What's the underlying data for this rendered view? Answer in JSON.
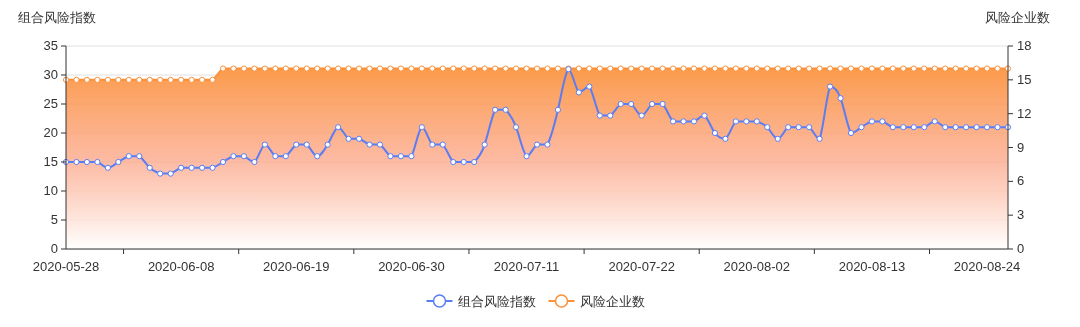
{
  "chart_data": {
    "type": "line",
    "ylabel": "组合风险指数",
    "y2label": "风险企业数",
    "categories": [
      "2020-05-28",
      null,
      null,
      null,
      null,
      null,
      null,
      null,
      null,
      null,
      null,
      "2020-06-08",
      null,
      null,
      null,
      null,
      null,
      null,
      null,
      null,
      null,
      null,
      "2020-06-19",
      null,
      null,
      null,
      null,
      null,
      null,
      null,
      null,
      null,
      null,
      "2020-06-30",
      null,
      null,
      null,
      null,
      null,
      null,
      null,
      null,
      null,
      null,
      "2020-07-11",
      null,
      null,
      null,
      null,
      null,
      null,
      null,
      null,
      null,
      null,
      "2020-07-22",
      null,
      null,
      null,
      null,
      null,
      null,
      null,
      null,
      null,
      null,
      "2020-08-02",
      null,
      null,
      null,
      null,
      null,
      null,
      null,
      null,
      null,
      null,
      "2020-08-13",
      null,
      null,
      null,
      null,
      null,
      null,
      null,
      null,
      null,
      null,
      "2020-08-24",
      null,
      null
    ],
    "ylim": [
      0,
      35
    ],
    "yticks": [
      0,
      5,
      10,
      15,
      20,
      25,
      30,
      35
    ],
    "y2lim": [
      0,
      18
    ],
    "y2ticks": [
      0,
      3,
      6,
      9,
      12,
      15,
      18
    ],
    "grid": "y",
    "legend": "bottom",
    "marker": "circle",
    "line_style": "solid",
    "series": [
      {
        "name": "组合风险指数",
        "color": "#5b7cf2",
        "values": [
          15,
          15,
          15,
          15,
          14,
          15,
          16,
          16,
          14,
          13,
          13,
          14,
          14,
          14,
          14,
          15,
          16,
          16,
          15,
          18,
          16,
          16,
          18,
          18,
          16,
          18,
          21,
          19,
          19,
          18,
          18,
          16,
          16,
          16,
          21,
          18,
          18,
          15,
          15,
          15,
          18,
          24,
          24,
          21,
          16,
          18,
          18,
          24,
          31,
          27,
          28,
          23,
          23,
          25,
          25,
          23,
          25,
          25,
          22,
          22,
          22,
          23,
          20,
          19,
          22,
          22,
          22,
          21,
          19,
          21,
          21,
          21,
          19,
          28,
          26,
          20,
          21,
          22,
          22,
          21,
          21,
          21,
          21,
          22,
          21,
          21,
          21,
          21,
          21,
          21,
          21
        ]
      },
      {
        "name": "风险企业数",
        "color": "#fb9038",
        "type": "area",
        "axis": "y2",
        "values": [
          15,
          15,
          15,
          15,
          15,
          15,
          15,
          15,
          15,
          15,
          15,
          15,
          15,
          15,
          15,
          16,
          16,
          16,
          16,
          16,
          16,
          16,
          16,
          16,
          16,
          16,
          16,
          16,
          16,
          16,
          16,
          16,
          16,
          16,
          16,
          16,
          16,
          16,
          16,
          16,
          16,
          16,
          16,
          16,
          16,
          16,
          16,
          16,
          16,
          16,
          16,
          16,
          16,
          16,
          16,
          16,
          16,
          16,
          16,
          16,
          16,
          16,
          16,
          16,
          16,
          16,
          16,
          16,
          16,
          16,
          16,
          16,
          16,
          16,
          16,
          16,
          16,
          16,
          16,
          16,
          16,
          16,
          16,
          16,
          16,
          16,
          16,
          16,
          16,
          16,
          16
        ]
      }
    ]
  }
}
